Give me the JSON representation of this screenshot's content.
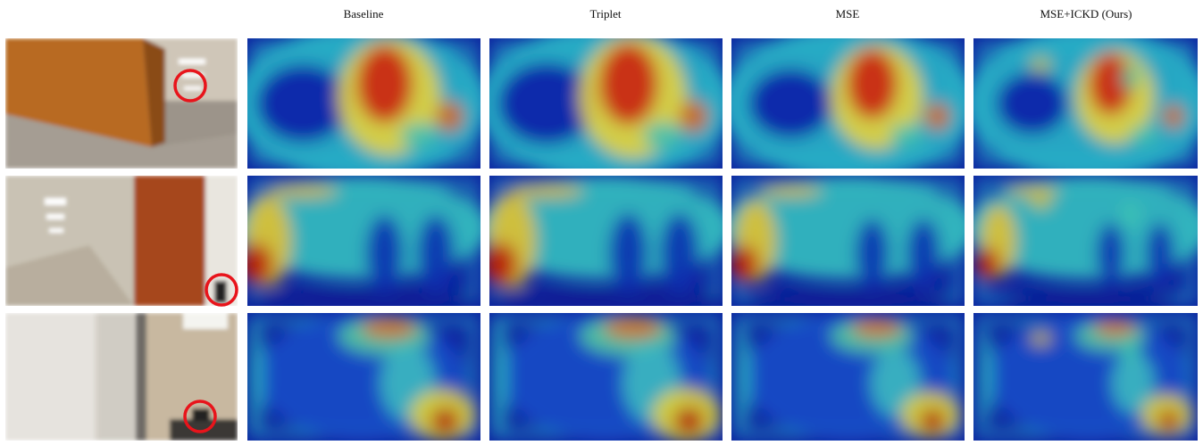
{
  "columns": [
    "Baseline",
    "Triplet",
    "MSE",
    "MSE+ICKD (Ours)"
  ]
}
